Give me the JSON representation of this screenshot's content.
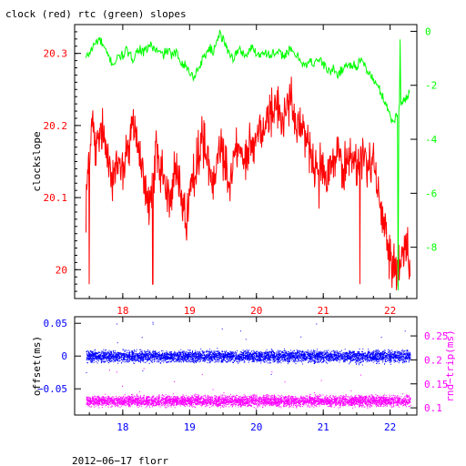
{
  "colors": {
    "black": "#000000",
    "red": "#ff0000",
    "green": "#00ff00",
    "blue": "#0000ff",
    "magenta": "#ff00ff"
  },
  "chart_data": [
    {
      "type": "line",
      "title": "clock (red) rtc (green) slopes",
      "xlabel": "",
      "ylabel_left": "clockslope",
      "ylabel_right": "",
      "xlim": [
        17.28,
        22.4
      ],
      "ylim_left": [
        19.96,
        20.34
      ],
      "ylim_right": [
        -9.9,
        0.25
      ],
      "xticks": [
        18,
        19,
        20,
        21,
        22
      ],
      "yticks_left": [
        20,
        20.1,
        20.2,
        20.3
      ],
      "yticks_right": [
        0,
        -2,
        -4,
        -6,
        -8
      ],
      "series": [
        {
          "name": "clock",
          "axis": "left",
          "color": "red",
          "x": [
            17.45,
            17.5,
            17.55,
            17.6,
            17.65,
            17.7,
            17.75,
            17.8,
            17.85,
            17.9,
            17.95,
            18.0,
            18.05,
            18.1,
            18.15,
            18.2,
            18.25,
            18.3,
            18.35,
            18.4,
            18.45,
            18.5,
            18.55,
            18.6,
            18.65,
            18.7,
            18.75,
            18.8,
            18.85,
            18.9,
            18.95,
            19.0,
            19.05,
            19.1,
            19.15,
            19.2,
            19.25,
            19.3,
            19.35,
            19.4,
            19.45,
            19.5,
            19.55,
            19.6,
            19.65,
            19.7,
            19.75,
            19.8,
            19.85,
            19.9,
            19.95,
            20.0,
            20.05,
            20.1,
            20.15,
            20.2,
            20.25,
            20.3,
            20.35,
            20.4,
            20.45,
            20.5,
            20.55,
            20.6,
            20.65,
            20.7,
            20.75,
            20.8,
            20.85,
            20.9,
            20.95,
            21.0,
            21.05,
            21.1,
            21.15,
            21.2,
            21.25,
            21.3,
            21.35,
            21.4,
            21.45,
            21.5,
            21.55,
            21.6,
            21.65,
            21.7,
            21.75,
            21.8,
            21.85,
            21.9,
            21.95,
            22.0,
            22.05,
            22.1,
            22.15,
            22.2,
            22.25,
            22.3
          ],
          "values": [
            20.09,
            20.17,
            20.21,
            20.16,
            20.18,
            20.19,
            20.17,
            20.16,
            20.12,
            20.14,
            20.15,
            20.14,
            20.16,
            20.17,
            20.2,
            20.18,
            20.16,
            20.13,
            20.1,
            20.09,
            20.12,
            20.16,
            20.14,
            20.13,
            20.11,
            20.1,
            20.12,
            20.14,
            20.12,
            20.09,
            20.07,
            20.1,
            20.12,
            20.15,
            20.17,
            20.18,
            20.16,
            20.14,
            20.13,
            20.15,
            20.18,
            20.16,
            20.14,
            20.13,
            20.15,
            20.17,
            20.16,
            20.15,
            20.16,
            20.18,
            20.17,
            20.18,
            20.2,
            20.19,
            20.21,
            20.22,
            20.22,
            20.23,
            20.21,
            20.2,
            20.22,
            20.24,
            20.22,
            20.2,
            20.19,
            20.2,
            20.18,
            20.17,
            20.15,
            20.14,
            20.16,
            20.15,
            20.13,
            20.14,
            20.15,
            20.16,
            20.15,
            20.14,
            20.15,
            20.16,
            20.15,
            20.14,
            20.15,
            20.16,
            20.15,
            20.14,
            20.15,
            20.12,
            20.08,
            20.06,
            20.04,
            20.02,
            20.01,
            20.0,
            20.01,
            20.02,
            20.03,
            20.0
          ]
        },
        {
          "name": "rtc",
          "axis": "right",
          "color": "green",
          "x": [
            17.45,
            17.5,
            17.55,
            17.6,
            17.65,
            17.7,
            17.75,
            17.8,
            17.85,
            17.9,
            17.95,
            18.0,
            18.05,
            18.1,
            18.15,
            18.2,
            18.25,
            18.3,
            18.35,
            18.4,
            18.45,
            18.5,
            18.55,
            18.6,
            18.65,
            18.7,
            18.75,
            18.8,
            18.85,
            18.9,
            18.95,
            19.0,
            19.05,
            19.1,
            19.15,
            19.2,
            19.25,
            19.3,
            19.35,
            19.4,
            19.45,
            19.5,
            19.55,
            19.6,
            19.65,
            19.7,
            19.75,
            19.8,
            19.85,
            19.9,
            19.95,
            20.0,
            20.05,
            20.1,
            20.15,
            20.2,
            20.25,
            20.3,
            20.35,
            20.4,
            20.45,
            20.5,
            20.55,
            20.6,
            20.65,
            20.7,
            20.75,
            20.8,
            20.85,
            20.9,
            20.95,
            21.0,
            21.05,
            21.1,
            21.15,
            21.2,
            21.25,
            21.3,
            21.35,
            21.4,
            21.45,
            21.5,
            21.55,
            21.6,
            21.65,
            21.7,
            21.75,
            21.8,
            21.85,
            21.9,
            21.95,
            22.0,
            22.05,
            22.1,
            22.15,
            22.2,
            22.25,
            22.3
          ],
          "values": [
            -1.0,
            -0.8,
            -0.6,
            -0.4,
            -0.3,
            -0.5,
            -0.8,
            -1.0,
            -1.2,
            -1.1,
            -0.9,
            -0.9,
            -0.7,
            -0.9,
            -1.0,
            -0.8,
            -0.6,
            -0.8,
            -0.7,
            -0.5,
            -0.6,
            -0.7,
            -0.8,
            -0.9,
            -0.7,
            -0.8,
            -0.9,
            -0.8,
            -1.0,
            -1.2,
            -1.3,
            -1.5,
            -1.7,
            -1.5,
            -1.3,
            -1.0,
            -0.8,
            -0.6,
            -0.8,
            -0.3,
            -0.1,
            -0.3,
            -0.6,
            -0.8,
            -1.0,
            -0.8,
            -0.7,
            -0.8,
            -0.9,
            -0.7,
            -0.6,
            -0.8,
            -0.9,
            -0.7,
            -0.8,
            -0.9,
            -0.8,
            -0.9,
            -0.8,
            -0.9,
            -0.8,
            -0.7,
            -0.8,
            -0.9,
            -1.0,
            -1.2,
            -1.3,
            -1.1,
            -1.2,
            -1.0,
            -1.1,
            -1.2,
            -1.4,
            -1.5,
            -1.4,
            -1.6,
            -1.5,
            -1.4,
            -1.2,
            -1.3,
            -1.2,
            -1.3,
            -1.1,
            -1.2,
            -1.4,
            -1.6,
            -1.8,
            -2.0,
            -2.2,
            -2.5,
            -2.7,
            -3.2,
            -3.4,
            -3.0,
            -2.7,
            -2.6,
            -2.4,
            -2.2
          ]
        }
      ]
    },
    {
      "type": "scatter",
      "title": "",
      "xlabel": "",
      "ylabel_left": "offset(ms)",
      "ylabel_right": "rnd−trip(ms)",
      "xlim": [
        17.28,
        22.4
      ],
      "ylim_left": [
        -0.09,
        0.06
      ],
      "ylim_right": [
        0.085,
        0.29
      ],
      "xticks": [
        18,
        19,
        20,
        21,
        22
      ],
      "yticks_left": [
        0.05,
        0,
        -0.05
      ],
      "yticks_right": [
        0.25,
        0.2,
        0.15,
        0.1
      ],
      "ytick_labels_left": [
        "0.05",
        "0",
        "−0.05"
      ],
      "ytick_labels_right": [
        "0.25",
        "0.2",
        "0.15",
        "0.1"
      ],
      "series": [
        {
          "name": "offset",
          "axis": "left",
          "color": "blue",
          "x_range": [
            17.45,
            22.3
          ],
          "center": 0.0,
          "spread": 0.008
        },
        {
          "name": "rnd-trip",
          "axis": "right",
          "color": "magenta",
          "x_range": [
            17.45,
            22.3
          ],
          "center": 0.115,
          "spread": 0.01
        }
      ]
    }
  ],
  "footer": "2012−06−17 florr"
}
